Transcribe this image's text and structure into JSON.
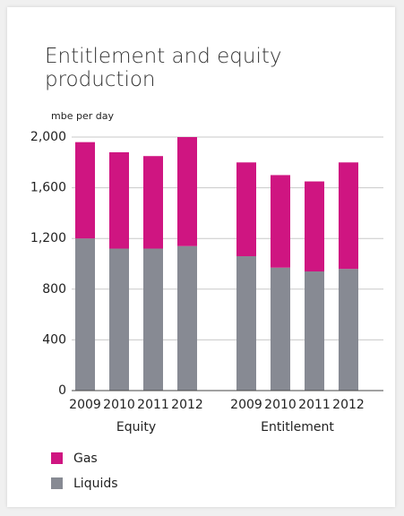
{
  "chart_data": {
    "type": "stacked-bar",
    "title": "Entitlement and equity production",
    "y_label": "mbe per day",
    "groups": [
      {
        "name": "Equity",
        "categories": [
          "2009",
          "2010",
          "2011",
          "2012"
        ]
      },
      {
        "name": "Entitlement",
        "categories": [
          "2009",
          "2010",
          "2011",
          "2012"
        ]
      }
    ],
    "series": [
      {
        "name": "Liquids",
        "color": "#878a93",
        "values": [
          [
            1200,
            1120,
            1120,
            1140
          ],
          [
            1060,
            970,
            940,
            960
          ]
        ]
      },
      {
        "name": "Gas",
        "color": "#cf1581",
        "values": [
          [
            760,
            760,
            730,
            860
          ],
          [
            740,
            730,
            710,
            840
          ]
        ]
      }
    ],
    "ylim": [
      0,
      2000
    ],
    "yticks": [
      0,
      400,
      800,
      {
        "value": 1200,
        "label": "1,200"
      },
      {
        "value": 1600,
        "label": "1,600"
      },
      {
        "value": 2000,
        "label": "2,000"
      }
    ],
    "grid": true
  }
}
